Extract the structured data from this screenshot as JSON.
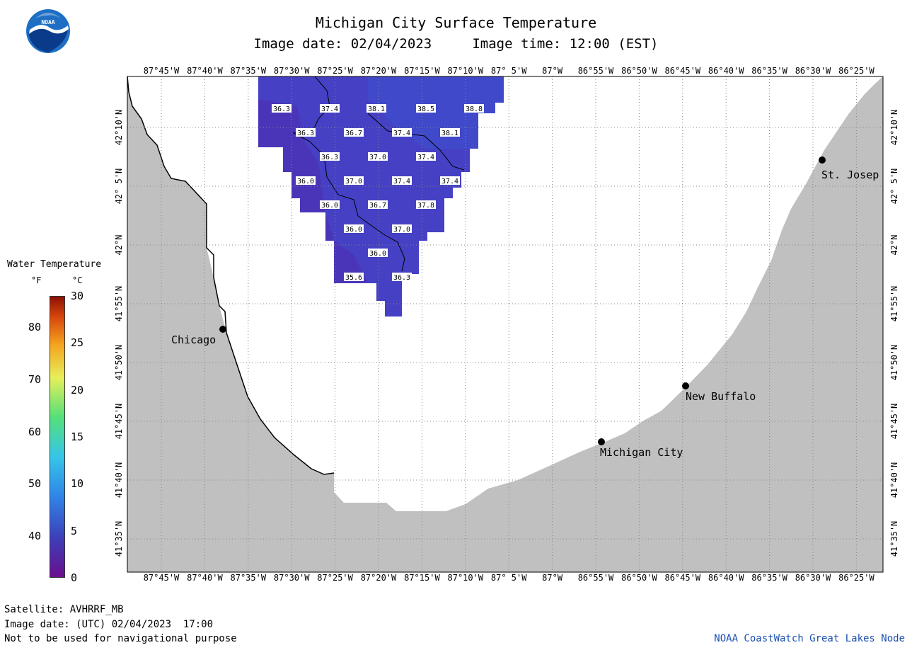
{
  "title": "Michigan City Surface Temperature",
  "subtitle": "Image date: 02/04/2023     Image time: 12:00 (EST)",
  "logo": {
    "text": "NOAA",
    "icon": "noaa-logo"
  },
  "colors": {
    "land": "#c0c0c0",
    "water": "#ffffff",
    "grid": "#999999",
    "footer_link": "#1a4fb0"
  },
  "map": {
    "lon_labels": [
      "87°45'W",
      "87°40'W",
      "87°35'W",
      "87°30'W",
      "87°25'W",
      "87°20'W",
      "87°15'W",
      "87°10'W",
      "87° 5'W",
      "87°W",
      "86°55'W",
      "86°50'W",
      "86°45'W",
      "86°40'W",
      "86°35'W",
      "86°30'W",
      "86°25'W"
    ],
    "lat_labels": [
      "42°10'N",
      "42° 5'N",
      "42°N",
      "41°55'N",
      "41°50'N",
      "41°45'N",
      "41°40'N",
      "41°35'N"
    ],
    "cities": [
      {
        "name": "Chicago"
      },
      {
        "name": "St. Josep"
      },
      {
        "name": "New Buffalo"
      },
      {
        "name": "Michigan City"
      }
    ],
    "temperature_labels": [
      "36.3",
      "37.4",
      "38.1",
      "38.5",
      "38.8",
      "36.3",
      "36.7",
      "37.4",
      "38.1",
      "36.3",
      "37.0",
      "37.4",
      "36.0",
      "37.0",
      "37.4",
      "37.4",
      "36.0",
      "36.7",
      "37.8",
      "36.0",
      "37.0",
      "36.0",
      "35.6",
      "36.3"
    ]
  },
  "legend": {
    "title": "Water Temperature",
    "f_header": "°F",
    "c_header": "°C",
    "f_ticks": [
      "80",
      "70",
      "60",
      "50",
      "40"
    ],
    "c_ticks": [
      "30",
      "25",
      "20",
      "15",
      "10",
      "5",
      "0"
    ],
    "scale_f": {
      "min": 32,
      "max": 86
    },
    "scale_c": {
      "min": 0,
      "max": 30
    }
  },
  "footer": {
    "satellite": "Satellite: AVHRRF_MB",
    "utc_date": "Image date: (UTC) 02/04/2023  17:00",
    "disclaimer": "Not to be used for navigational purpose",
    "node": "NOAA CoastWatch Great Lakes Node"
  }
}
